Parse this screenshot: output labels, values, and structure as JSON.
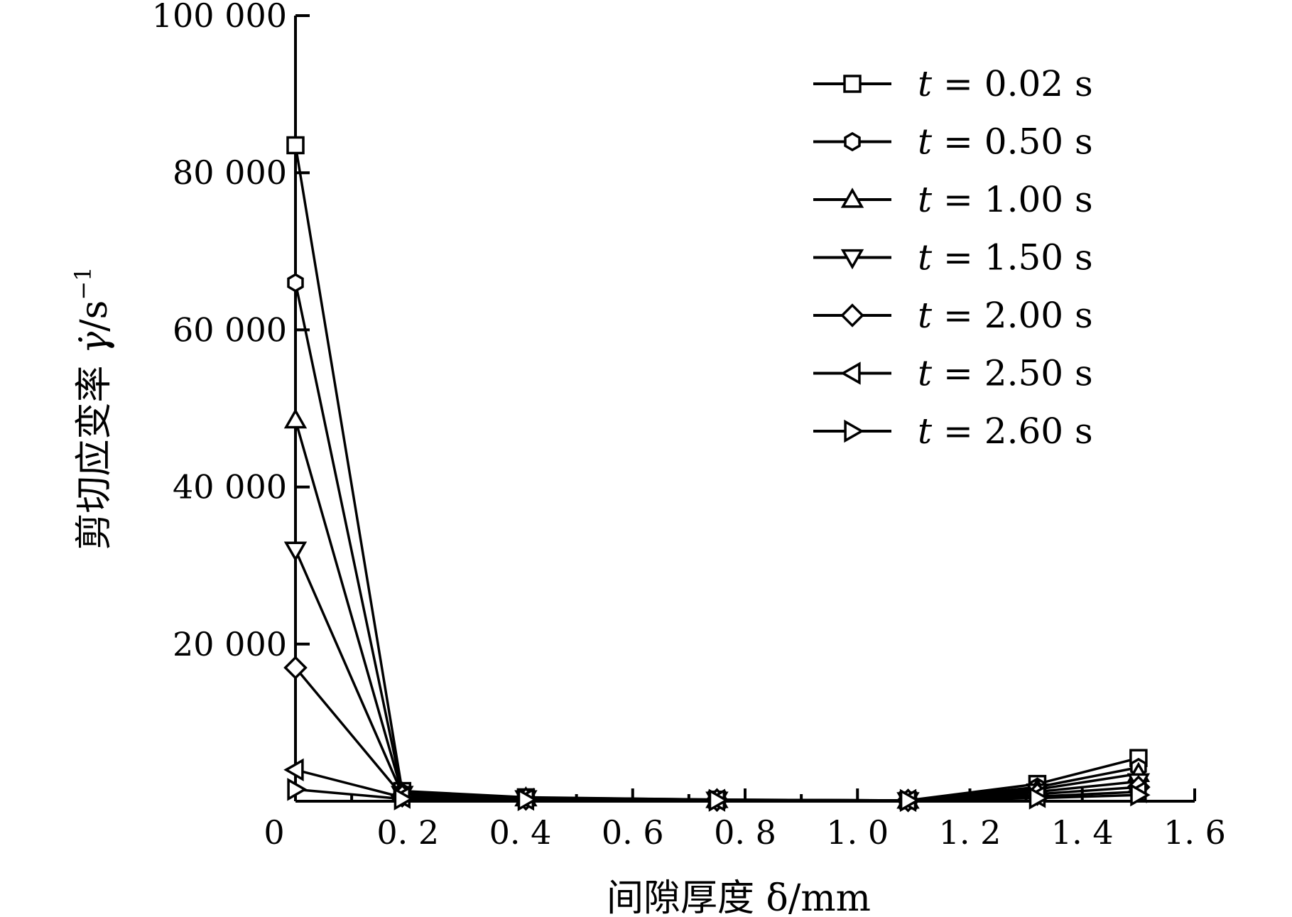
{
  "chart_data": {
    "type": "line",
    "xlabel": "间隙厚度 δ/mm",
    "ylabel_prefix": "剪切应变率 ",
    "ylabel_symbol": "γ̇",
    "ylabel_unit": "/s",
    "ylabel_exp": "−1",
    "xlim": [
      0,
      1.6
    ],
    "ylim": [
      0,
      100000
    ],
    "x_ticks": [
      0,
      0.2,
      0.4,
      0.6,
      0.8,
      1.0,
      1.2,
      1.4,
      1.6
    ],
    "x_tick_labels": [
      "0",
      "0. 2",
      "0. 4",
      "0. 6",
      "0. 8",
      "1. 0",
      "1. 2",
      "1. 4",
      "1. 6"
    ],
    "y_ticks": [
      20000,
      40000,
      60000,
      80000,
      100000
    ],
    "y_tick_labels": [
      "20 000",
      "40 000",
      "60 000",
      "80 000",
      "100 000"
    ],
    "x": [
      0.0,
      0.19,
      0.41,
      0.75,
      1.09,
      1.32,
      1.5
    ],
    "series": [
      {
        "name": "t = 0.02 s",
        "var": "t",
        "rest": " = 0.02 s",
        "marker": "square",
        "values": [
          83500,
          1300,
          500,
          200,
          100,
          2200,
          5500
        ]
      },
      {
        "name": "t = 0.50 s",
        "var": "t",
        "rest": " = 0.50 s",
        "marker": "hexagon",
        "values": [
          66000,
          1100,
          450,
          200,
          100,
          1800,
          4300
        ]
      },
      {
        "name": "t = 1.00 s",
        "var": "t",
        "rest": " = 1.00 s",
        "marker": "triangle-up",
        "values": [
          48500,
          1000,
          400,
          180,
          100,
          1500,
          3500
        ]
      },
      {
        "name": "t = 1.50 s",
        "var": "t",
        "rest": " = 1.50 s",
        "marker": "triangle-down",
        "values": [
          32000,
          900,
          350,
          160,
          100,
          1200,
          2500
        ]
      },
      {
        "name": "t = 2.00 s",
        "var": "t",
        "rest": " = 2.00 s",
        "marker": "diamond",
        "values": [
          17000,
          700,
          300,
          150,
          100,
          900,
          1800
        ]
      },
      {
        "name": "t = 2.50 s",
        "var": "t",
        "rest": " = 2.50 s",
        "marker": "triangle-left",
        "values": [
          4000,
          500,
          250,
          130,
          100,
          600,
          1200
        ]
      },
      {
        "name": "t = 2.60 s",
        "var": "t",
        "rest": " = 2.60 s",
        "marker": "triangle-right",
        "values": [
          1500,
          300,
          200,
          120,
          100,
          400,
          800
        ]
      }
    ],
    "legend_position": "top-right",
    "grid": false
  }
}
